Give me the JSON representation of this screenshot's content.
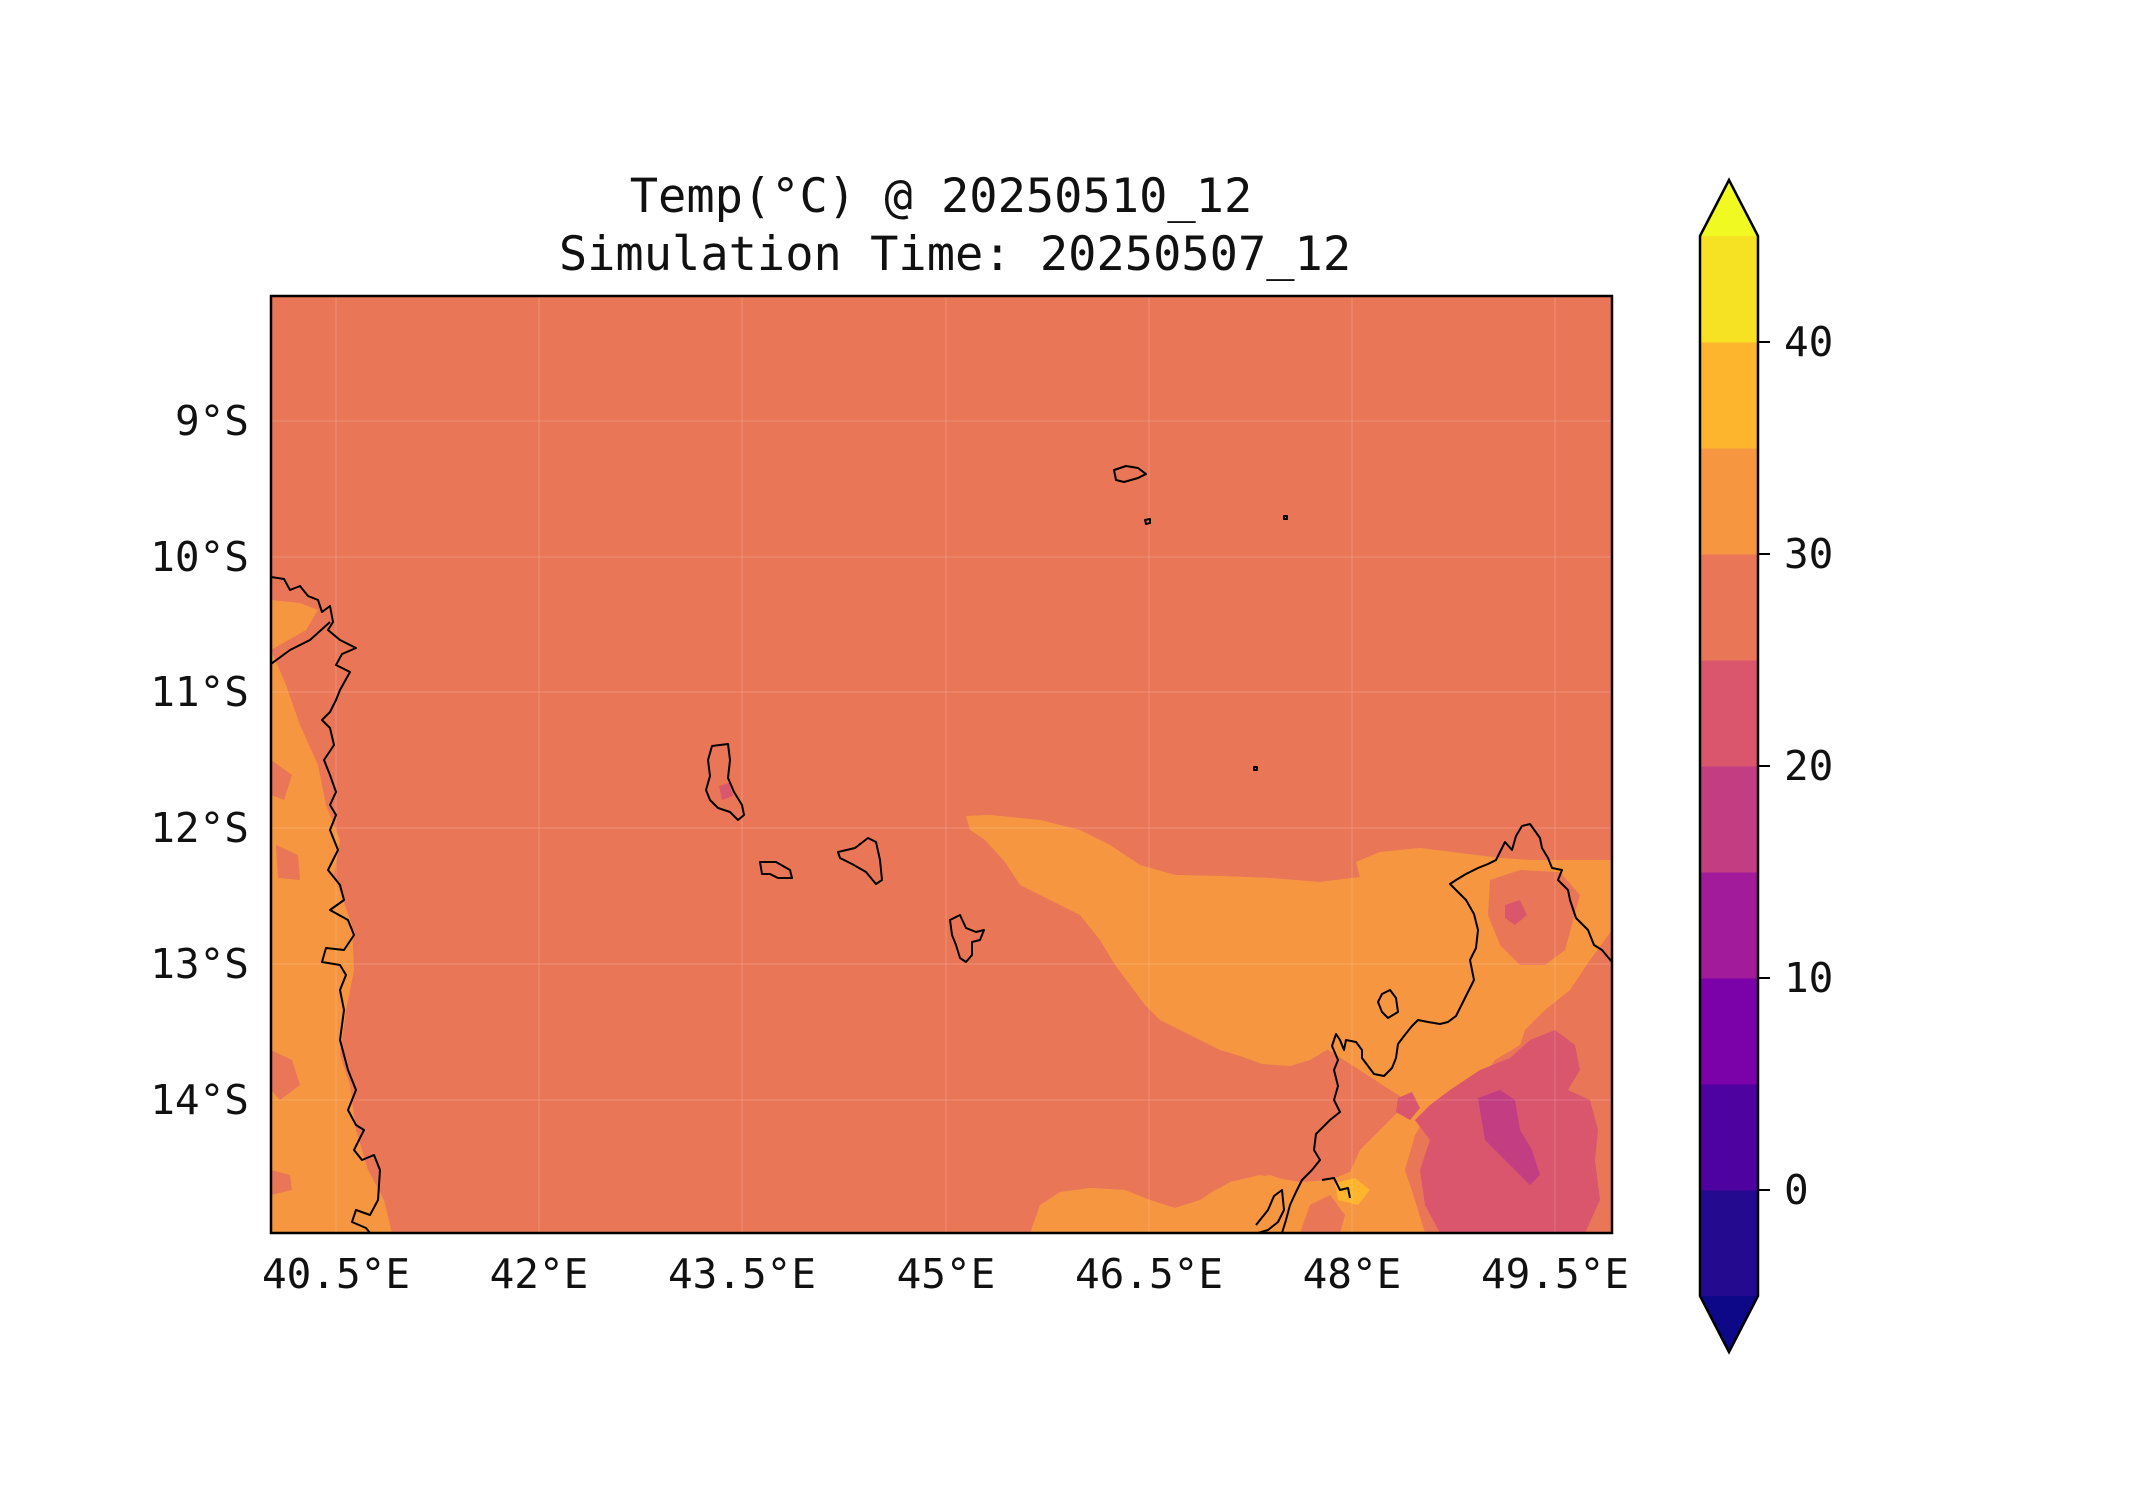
{
  "title": {
    "line1": "Temp(°C) @ 20250510_12",
    "line2": "Simulation Time: 20250507_12"
  },
  "map": {
    "type": "contourf",
    "variable": "Temp(°C)",
    "lon_range": [
      40.2,
      49.8
    ],
    "lat_range": [
      -15.0,
      -8.1
    ],
    "background_value_range": [
      25,
      30
    ],
    "background_color": "#EA7658",
    "coastline_color": "#000000",
    "x_ticks": [
      {
        "value": 40.5,
        "label": "40.5°E"
      },
      {
        "value": 42,
        "label": "42°E"
      },
      {
        "value": 43.5,
        "label": "43.5°E"
      },
      {
        "value": 45,
        "label": "45°E"
      },
      {
        "value": 46.5,
        "label": "46.5°E"
      },
      {
        "value": 48,
        "label": "48°E"
      },
      {
        "value": 49.5,
        "label": "49.5°E"
      }
    ],
    "y_ticks": [
      {
        "value": -9,
        "label": "9°S"
      },
      {
        "value": -10,
        "label": "10°S"
      },
      {
        "value": -11,
        "label": "11°S"
      },
      {
        "value": -12,
        "label": "12°S"
      },
      {
        "value": -13,
        "label": "13°S"
      },
      {
        "value": -14,
        "label": "14°S"
      }
    ]
  },
  "colorbar": {
    "extend": "both",
    "range": [
      -5,
      45
    ],
    "levels": [
      {
        "from": -5,
        "to": 0,
        "color": "#240A8E"
      },
      {
        "from": 0,
        "to": 5,
        "color": "#4E03A0"
      },
      {
        "from": 5,
        "to": 10,
        "color": "#7A02A8"
      },
      {
        "from": 10,
        "to": 15,
        "color": "#A11B9B"
      },
      {
        "from": 15,
        "to": 20,
        "color": "#C23D81"
      },
      {
        "from": 20,
        "to": 25,
        "color": "#D9566D"
      },
      {
        "from": 25,
        "to": 30,
        "color": "#EA7658"
      },
      {
        "from": 30,
        "to": 35,
        "color": "#F69641"
      },
      {
        "from": 35,
        "to": 40,
        "color": "#FDB52E"
      },
      {
        "from": 40,
        "to": 45,
        "color": "#F6E123"
      }
    ],
    "under_color": "#0D0887",
    "over_color": "#F0F921",
    "ticks": [
      {
        "value": 0,
        "label": "0"
      },
      {
        "value": 10,
        "label": "10"
      },
      {
        "value": 20,
        "label": "20"
      },
      {
        "value": 30,
        "label": "30"
      },
      {
        "value": 40,
        "label": "40"
      }
    ]
  }
}
